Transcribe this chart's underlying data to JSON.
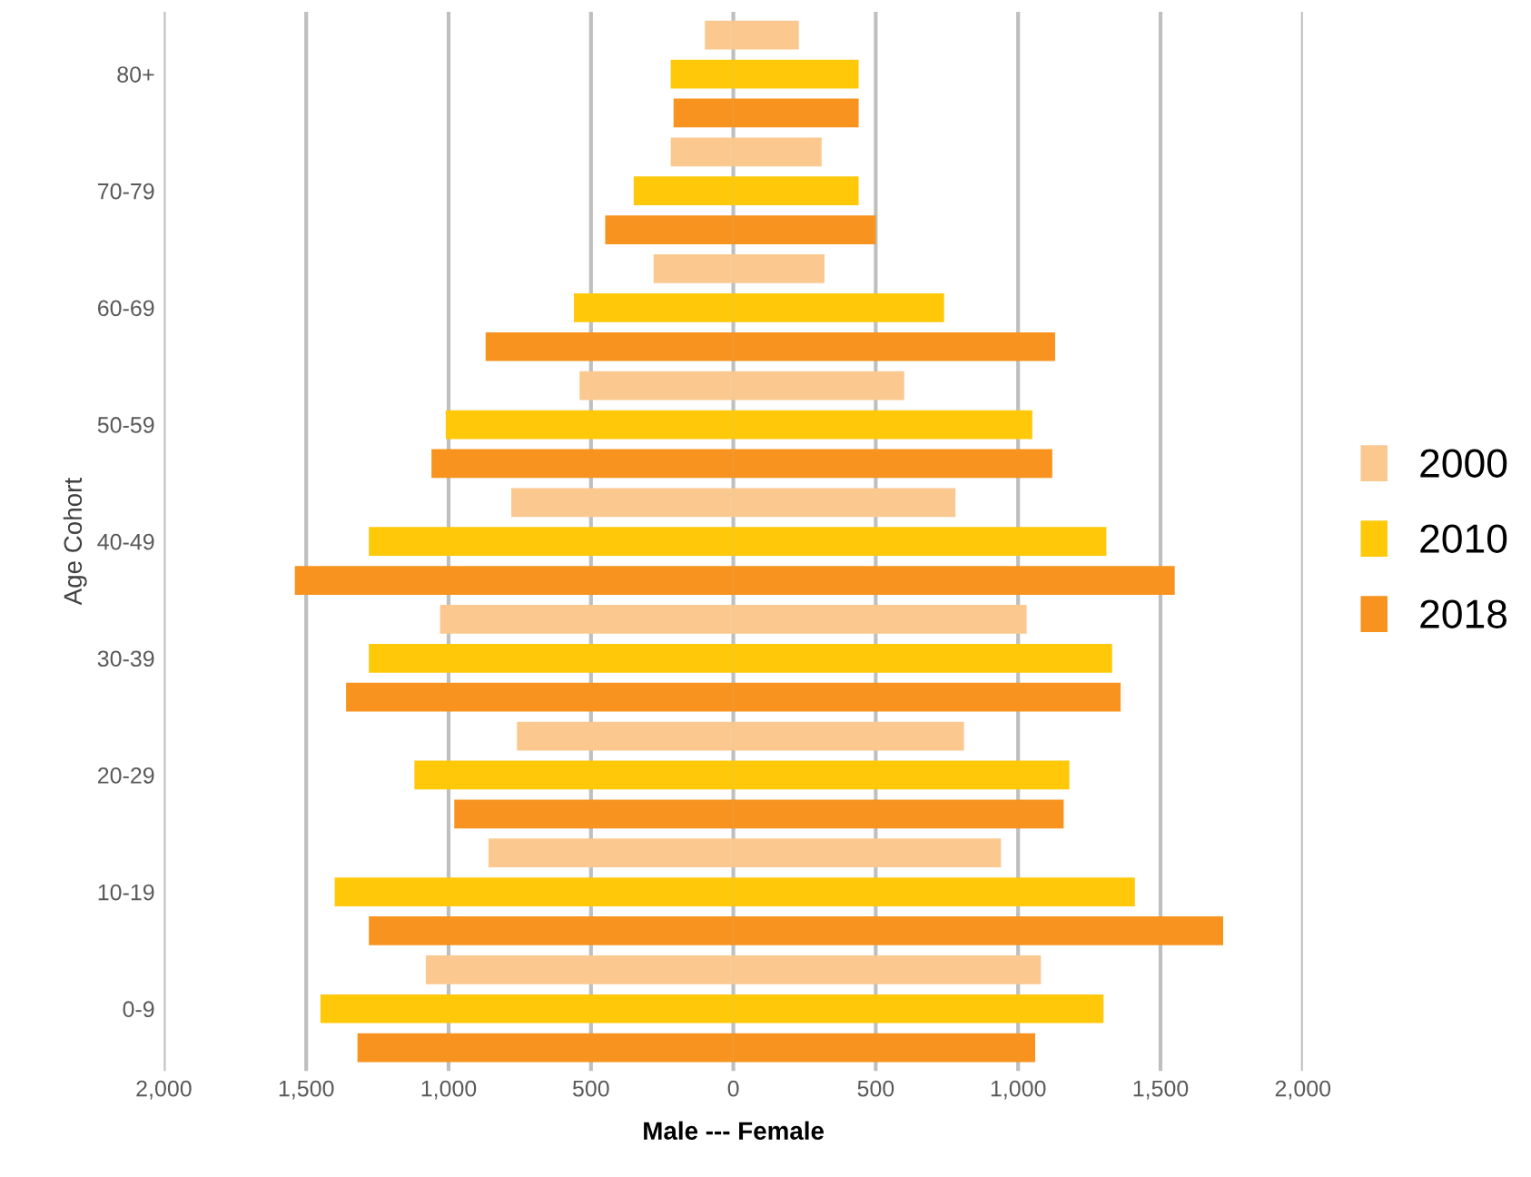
{
  "chart_data": {
    "type": "bar",
    "orientation": "horizontal",
    "stacked": true,
    "xlabel": "Male --- Female",
    "ylabel": "Age Cohort",
    "categories": [
      null,
      "80+",
      null,
      null,
      "70-79",
      null,
      null,
      "60-69",
      null,
      null,
      "50-59",
      null,
      null,
      "40-49",
      null,
      null,
      "30-39",
      null,
      null,
      "20-29",
      null,
      null,
      "10-19",
      null,
      null,
      "0-9",
      null
    ],
    "series": [
      {
        "name": "2000",
        "color": "#fbc990",
        "values": [
          230,
          null,
          null,
          310,
          null,
          null,
          320,
          null,
          null,
          600,
          null,
          null,
          780,
          null,
          null,
          1030,
          null,
          null,
          810,
          null,
          null,
          940,
          null,
          null,
          1080,
          null,
          null
        ]
      },
      {
        "color": "#fbc990",
        "values": [
          -100,
          null,
          null,
          -220,
          null,
          null,
          -280,
          null,
          null,
          -540,
          null,
          null,
          -780,
          null,
          null,
          -1030,
          null,
          null,
          -760,
          null,
          null,
          -860,
          null,
          null,
          -1080,
          null,
          null
        ]
      },
      {
        "name": "2010",
        "color": "#ffc90a",
        "values": [
          null,
          440,
          null,
          null,
          440,
          null,
          null,
          740,
          null,
          null,
          1050,
          null,
          null,
          1310,
          null,
          null,
          1330,
          null,
          null,
          1180,
          null,
          null,
          1410,
          null,
          null,
          1300,
          null
        ]
      },
      {
        "color": "#ffc90a",
        "values": [
          null,
          -220,
          null,
          null,
          -350,
          null,
          null,
          -560,
          null,
          null,
          -1010,
          null,
          null,
          -1280,
          null,
          null,
          -1280,
          null,
          null,
          -1120,
          null,
          null,
          -1400,
          null,
          null,
          -1450,
          null
        ]
      },
      {
        "name": "2018",
        "color": "#f7931e",
        "values": [
          null,
          null,
          440,
          null,
          null,
          500,
          null,
          null,
          1130,
          null,
          null,
          1120,
          null,
          null,
          1550,
          null,
          null,
          1360,
          null,
          null,
          1160,
          null,
          null,
          1720,
          null,
          null,
          1060
        ]
      },
      {
        "color": "#f7931e",
        "values": [
          null,
          null,
          -210,
          null,
          null,
          -450,
          null,
          null,
          -870,
          null,
          null,
          -1060,
          null,
          null,
          -1540,
          null,
          null,
          -1360,
          null,
          null,
          -980,
          null,
          null,
          -1280,
          null,
          null,
          -1320
        ]
      }
    ],
    "xlim": [
      -2000,
      2000
    ],
    "xticks": [
      {
        "value": -2000,
        "label": "2,000"
      },
      {
        "value": -1500,
        "label": "1,500"
      },
      {
        "value": -1000,
        "label": "1,000"
      },
      {
        "value": -500,
        "label": "500"
      },
      0,
      500,
      {
        "value": 1000,
        "label": "1,000"
      },
      {
        "value": 1500,
        "label": "1,500"
      },
      {
        "value": 2000,
        "label": "2,000"
      }
    ],
    "grid": "x",
    "legend": "right"
  }
}
